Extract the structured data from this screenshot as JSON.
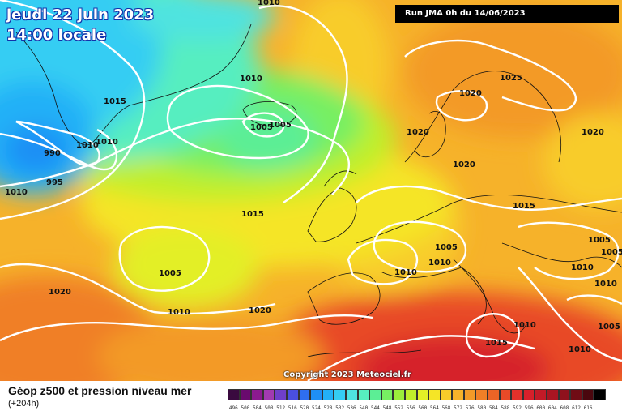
{
  "header": {
    "date": "jeudi 22 juin 2023",
    "time": "14:00 locale",
    "run": "Run JMA 0h du 14/06/2023"
  },
  "copyright": "Copyright 2023 Meteociel.fr",
  "legend": {
    "title": "Géop z500 et pression niveau mer",
    "subtitle": "(+204h)",
    "colors": [
      "#3a0a3f",
      "#6a0a6e",
      "#8b1a8f",
      "#a23ab0",
      "#6f3fc9",
      "#4a4fe0",
      "#2f6ef0",
      "#1f8ff5",
      "#23b0f7",
      "#35cdf3",
      "#4fe3e0",
      "#57eec0",
      "#5cee95",
      "#77ef62",
      "#9bef3b",
      "#c0ef2b",
      "#e3ef27",
      "#f5e526",
      "#f8cc2a",
      "#f6b22a",
      "#f39a28",
      "#f07f27",
      "#ec6426",
      "#e84a28",
      "#e3312b",
      "#d6202b",
      "#c21a27",
      "#a91522",
      "#8f111d",
      "#700c15",
      "#4a070e",
      "#000000"
    ],
    "values": [
      "496",
      "500",
      "504",
      "508",
      "512",
      "516",
      "520",
      "524",
      "528",
      "532",
      "536",
      "540",
      "544",
      "548",
      "552",
      "556",
      "560",
      "564",
      "568",
      "572",
      "576",
      "580",
      "584",
      "588",
      "592",
      "596",
      "600",
      "604",
      "608",
      "612",
      "616"
    ]
  },
  "isobars": [
    {
      "label": "1010"
    },
    {
      "label": "1015"
    },
    {
      "label": "1010"
    },
    {
      "label": "1010"
    },
    {
      "label": "990"
    },
    {
      "label": "995"
    },
    {
      "label": "1010"
    },
    {
      "label": "1010"
    },
    {
      "label": "1005"
    },
    {
      "label": "1005"
    },
    {
      "label": "1015"
    },
    {
      "label": "1005"
    },
    {
      "label": "1020"
    },
    {
      "label": "1010"
    },
    {
      "label": "1020"
    },
    {
      "label": "1025"
    },
    {
      "label": "1020"
    },
    {
      "label": "1020"
    },
    {
      "label": "1020"
    },
    {
      "label": "1020"
    },
    {
      "label": "1015"
    },
    {
      "label": "1005"
    },
    {
      "label": "1010"
    },
    {
      "label": "1010"
    },
    {
      "label": "1005"
    },
    {
      "label": "1005"
    },
    {
      "label": "1010"
    },
    {
      "label": "1010"
    },
    {
      "label": "1015"
    },
    {
      "label": "1010"
    },
    {
      "label": "1005"
    },
    {
      "label": "1010"
    }
  ]
}
